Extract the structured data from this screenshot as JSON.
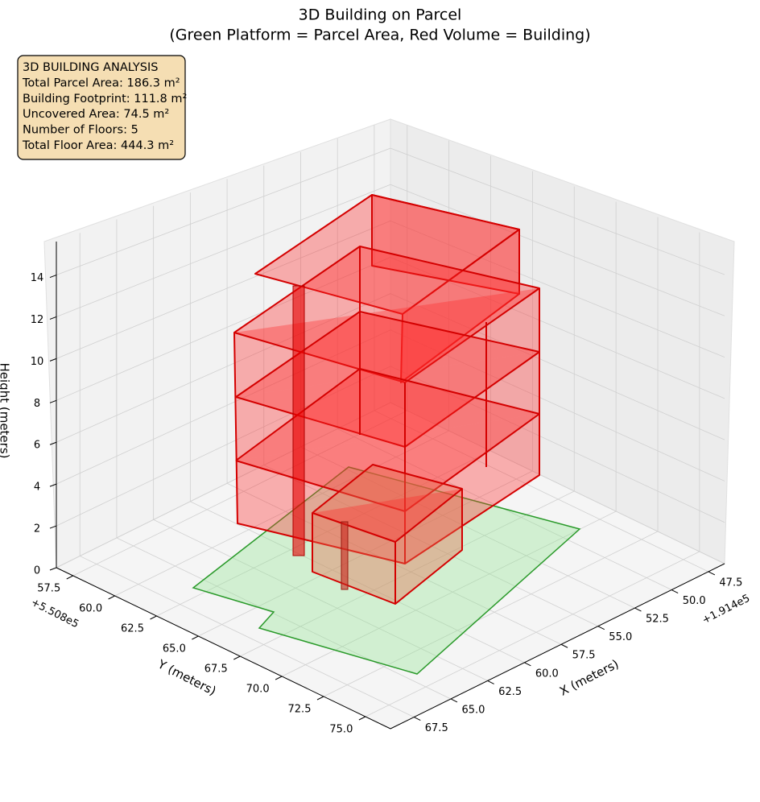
{
  "chart_data": {
    "type": "3d",
    "title": "3D Building on Parcel",
    "subtitle": "(Green Platform = Parcel Area, Red Volume = Building)",
    "annotation": [
      "3D BUILDING ANALYSIS",
      "Total Parcel Area: 186.3 m²",
      "Building Footprint: 111.8 m²",
      "Uncovered Area: 74.5 m²",
      "Number of Floors: 5",
      "Total Floor Area: 444.3 m²"
    ],
    "xlabel": "X (meters)",
    "ylabel": "Y (meters)",
    "zlabel": "Height (meters)",
    "x_offset": "+1.914e5",
    "y_offset": "+5.508e5",
    "xlim": [
      46.4,
      69.1
    ],
    "xticks": [
      47.5,
      {
        "value": 50,
        "label": "50.0"
      },
      52.5,
      {
        "value": 55,
        "label": "55.0"
      },
      57.5,
      {
        "value": 60,
        "label": "60.0"
      },
      62.5,
      {
        "value": 65,
        "label": "65.0"
      },
      67.5
    ],
    "ylim": [
      56.5,
      76.5
    ],
    "yticks": [
      57.5,
      {
        "value": 60,
        "label": "60.0"
      },
      62.5,
      {
        "value": 65,
        "label": "65.0"
      },
      67.5,
      {
        "value": 70,
        "label": "70.0"
      },
      72.5,
      {
        "value": 75,
        "label": "75.0"
      }
    ],
    "zlim": [
      0,
      15.6
    ],
    "zticks": [
      0,
      2,
      4,
      6,
      8,
      10,
      12,
      14
    ],
    "grid": true
  }
}
